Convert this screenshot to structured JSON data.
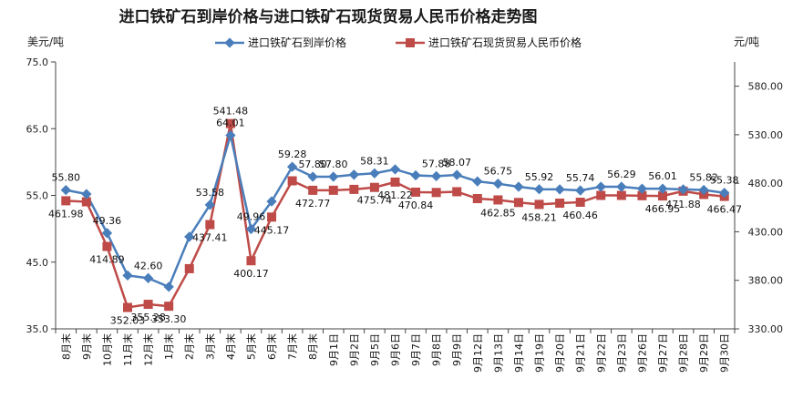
{
  "chart_data": {
    "type": "line",
    "title": "进口铁矿石到岸价格与进口铁矿石现货贸易人民币价格走势图",
    "ylabel_left": "美元/吨",
    "ylabel_right": "元/吨",
    "ylim_left": [
      35.0,
      75.0
    ],
    "ylim_right": [
      330.0,
      605.0
    ],
    "yticks_left": [
      "35.0",
      "45.0",
      "55.0",
      "65.0",
      "75.0"
    ],
    "yticks_right": [
      "330.00",
      "380.00",
      "430.00",
      "480.00",
      "530.00",
      "580.00"
    ],
    "legend_position": "top",
    "grid": false,
    "categories": [
      "8月末",
      "9月末",
      "10月末",
      "11月末",
      "12月末",
      "1月末",
      "2月末",
      "3月末",
      "4月末",
      "5月末",
      "6月末",
      "7月末",
      "8月末",
      "9月1日",
      "9月2日",
      "9月5日",
      "9月6日",
      "9月7日",
      "9月8日",
      "9月9日",
      "9月12日",
      "9月13日",
      "9月14日",
      "9月19日",
      "9月20日",
      "9月21日",
      "9月22日",
      "9月23日",
      "9月26日",
      "9月27日",
      "9月28日",
      "9月29日",
      "9月30日"
    ],
    "series": [
      {
        "name": "进口铁矿石到岸价格",
        "axis": "left",
        "color": "#4a7ebb",
        "marker": "diamond",
        "values": [
          55.8,
          55.2,
          49.36,
          43.0,
          42.6,
          41.3,
          48.8,
          53.58,
          64.01,
          49.96,
          54.1,
          59.28,
          57.8,
          57.8,
          58.1,
          58.31,
          58.9,
          58.0,
          57.88,
          58.07,
          57.1,
          56.75,
          56.3,
          55.92,
          55.9,
          55.74,
          56.3,
          56.29,
          56.0,
          56.01,
          55.9,
          55.82,
          55.38
        ]
      },
      {
        "name": "进口铁矿石现货贸易人民币价格",
        "axis": "right",
        "color": "#be4b48",
        "marker": "square",
        "values": [
          461.98,
          460.9,
          414.89,
          352.03,
          355.28,
          353.3,
          392.0,
          437.41,
          541.48,
          400.17,
          445.17,
          482.5,
          472.77,
          472.8,
          473.7,
          475.74,
          481.22,
          470.84,
          470.5,
          471.3,
          464.2,
          462.85,
          460.2,
          458.21,
          459.5,
          460.46,
          467.5,
          467.5,
          467.2,
          466.95,
          471.88,
          468.5,
          466.47
        ]
      }
    ],
    "data_labels": {
      "series_1": [
        {
          "i": 0,
          "text": "55.80"
        },
        {
          "i": 2,
          "text": "49.36"
        },
        {
          "i": 4,
          "text": "42.60"
        },
        {
          "i": 7,
          "text": "53.58"
        },
        {
          "i": 8,
          "text": "64.01"
        },
        {
          "i": 9,
          "text": "49.96"
        },
        {
          "i": 11,
          "text": "59.28"
        },
        {
          "i": 12,
          "text": "57.80"
        },
        {
          "i": 13,
          "text": "57.80"
        },
        {
          "i": 15,
          "text": "58.31"
        },
        {
          "i": 18,
          "text": "57.88"
        },
        {
          "i": 19,
          "text": "58.07"
        },
        {
          "i": 21,
          "text": "56.75"
        },
        {
          "i": 23,
          "text": "55.92"
        },
        {
          "i": 25,
          "text": "55.74"
        },
        {
          "i": 27,
          "text": "56.29"
        },
        {
          "i": 29,
          "text": "56.01"
        },
        {
          "i": 31,
          "text": "55.82"
        },
        {
          "i": 32,
          "text": "55.38"
        }
      ],
      "series_2": [
        {
          "i": 0,
          "text": "461.98"
        },
        {
          "i": 2,
          "text": "414.89"
        },
        {
          "i": 3,
          "text": "352.03"
        },
        {
          "i": 4,
          "text": "355.28"
        },
        {
          "i": 5,
          "text": "353.30"
        },
        {
          "i": 7,
          "text": "437.41"
        },
        {
          "i": 8,
          "text": "541.48"
        },
        {
          "i": 9,
          "text": "400.17"
        },
        {
          "i": 10,
          "text": "445.17"
        },
        {
          "i": 12,
          "text": "472.77"
        },
        {
          "i": 15,
          "text": "475.74"
        },
        {
          "i": 16,
          "text": "481.22"
        },
        {
          "i": 17,
          "text": "470.84"
        },
        {
          "i": 21,
          "text": "462.85"
        },
        {
          "i": 23,
          "text": "458.21"
        },
        {
          "i": 25,
          "text": "460.46"
        },
        {
          "i": 29,
          "text": "466.95"
        },
        {
          "i": 30,
          "text": "471.88"
        },
        {
          "i": 32,
          "text": "466.47"
        }
      ]
    }
  }
}
